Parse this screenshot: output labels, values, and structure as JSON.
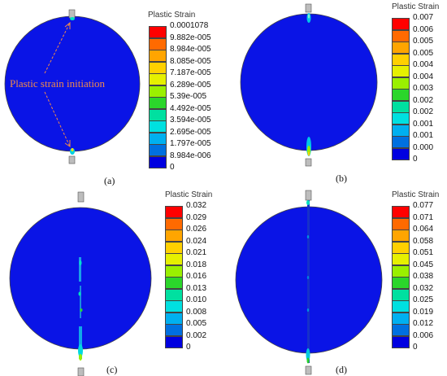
{
  "legend_title": "Plastic Strain",
  "colors": [
    "#ff0000",
    "#ff6a00",
    "#ffa500",
    "#ffd000",
    "#e6f000",
    "#9af000",
    "#2bd62b",
    "#00e0a0",
    "#00e0e0",
    "#00b0f0",
    "#0070e0",
    "#0000e0"
  ],
  "panels": [
    {
      "caption": "(a)",
      "labels": [
        "0.0001078",
        "9.882e-005",
        "8.984e-005",
        "8.085e-005",
        "7.187e-005",
        "6.289e-005",
        "5.39e-005",
        "4.492e-005",
        "3.594e-005",
        "2.695e-005",
        "1.797e-005",
        "8.984e-006",
        "0"
      ]
    },
    {
      "caption": "(b)",
      "labels": [
        "0.007",
        "0.006",
        "0.005",
        "0.005",
        "0.004",
        "0.004",
        "0.003",
        "0.002",
        "0.002",
        "0.001",
        "0.001",
        "0.000",
        "0"
      ]
    },
    {
      "caption": "(c)",
      "labels": [
        "0.032",
        "0.029",
        "0.026",
        "0.024",
        "0.021",
        "0.018",
        "0.016",
        "0.013",
        "0.010",
        "0.008",
        "0.005",
        "0.002",
        "0"
      ]
    },
    {
      "caption": "(d)",
      "labels": [
        "0.077",
        "0.071",
        "0.064",
        "0.058",
        "0.051",
        "0.045",
        "0.038",
        "0.032",
        "0.025",
        "0.019",
        "0.012",
        "0.006",
        "0"
      ]
    }
  ],
  "annotation": "Plastic strain initiation"
}
